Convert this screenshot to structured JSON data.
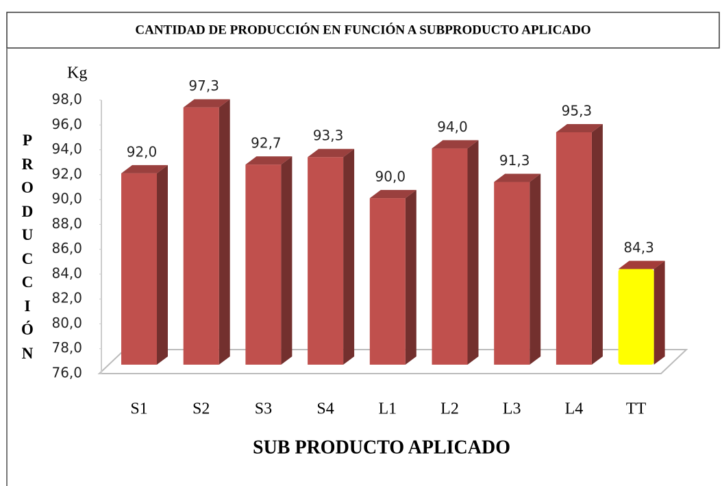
{
  "chart_data": {
    "type": "bar",
    "title": "CANTIDAD DE PRODUCCIÓN EN FUNCIÓN A SUBPRODUCTO APLICADO",
    "unit_label": "Kg",
    "y_label": "PRODUCCIÓN",
    "x_label": "SUB PRODUCTO APLICADO",
    "categories": [
      "S1",
      "S2",
      "S3",
      "S4",
      "L1",
      "L2",
      "L3",
      "L4",
      "TT"
    ],
    "values": [
      92.0,
      97.3,
      92.7,
      93.3,
      90.0,
      94.0,
      91.3,
      95.3,
      84.3
    ],
    "value_labels": [
      "92,0",
      "97,3",
      "92,7",
      "93,3",
      "90,0",
      "94,0",
      "91,3",
      "95,3",
      "84,3"
    ],
    "colors": [
      "#c0504d",
      "#c0504d",
      "#c0504d",
      "#c0504d",
      "#c0504d",
      "#c0504d",
      "#c0504d",
      "#c0504d",
      "#ffff00"
    ],
    "ylim": [
      76,
      98
    ],
    "yticks": [
      {
        "value": 76,
        "label": "76,0"
      },
      {
        "value": 78,
        "label": "78,0"
      },
      {
        "value": 80,
        "label": "80,0"
      },
      {
        "value": 82,
        "label": "82,0"
      },
      {
        "value": 84,
        "label": "84,0"
      },
      {
        "value": 86,
        "label": "86,0"
      },
      {
        "value": 88,
        "label": "88,0"
      },
      {
        "value": 90,
        "label": "90,0"
      },
      {
        "value": 92,
        "label": "92,0"
      },
      {
        "value": 94,
        "label": "94,0"
      },
      {
        "value": 96,
        "label": "96,0"
      },
      {
        "value": 98,
        "label": "98,0"
      }
    ],
    "grid": false
  }
}
